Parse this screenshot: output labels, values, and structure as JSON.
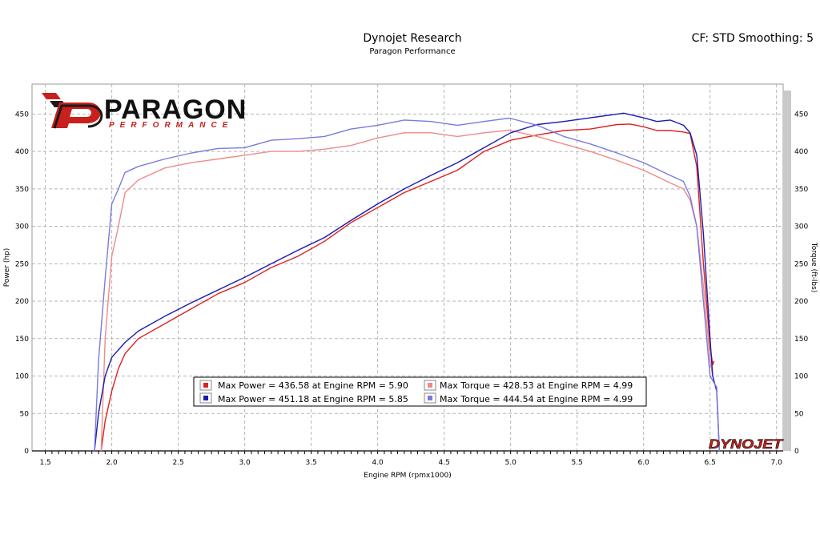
{
  "header": {
    "title": "Dynojet Research",
    "subtitle": "Paragon Performance",
    "settings": "CF: STD Smoothing: 5"
  },
  "logo": {
    "name": "PARAGON",
    "tagline": "PERFORMANCE",
    "brand": "DYNOJET"
  },
  "colors": {
    "run1_power": "#e02020",
    "run1_torque": "#f08a8a",
    "run2_power": "#1a1ab0",
    "run2_torque": "#7a7ae0"
  },
  "chart_data": {
    "type": "line",
    "xlabel": "Engine RPM (rpmx1000)",
    "ylabel_left": "Power (hp)",
    "ylabel_right": "Torque (ft-lbs)",
    "xlim": [
      1.4,
      7.05
    ],
    "ylim": [
      0,
      490
    ],
    "x_ticks": [
      1.5,
      2.0,
      2.5,
      3.0,
      3.5,
      4.0,
      4.5,
      5.0,
      5.5,
      6.0,
      6.5,
      7.0
    ],
    "x_tick_labels": [
      "1.5",
      "2.0",
      "2.5",
      "3.0",
      "3.5",
      "4.0",
      "4.5",
      "5.0",
      "5.5",
      "6.0",
      "6.5",
      "7.0"
    ],
    "y_ticks": [
      0,
      50,
      100,
      150,
      200,
      250,
      300,
      350,
      400,
      450
    ],
    "y_tick_labels": [
      "0",
      "50",
      "100",
      "150",
      "200",
      "250",
      "300",
      "350",
      "400",
      "450"
    ],
    "grid": true,
    "legend": [
      {
        "text": "Max Power = 436.58 at Engine RPM = 5.90",
        "series": "run1_power"
      },
      {
        "text": "Max Torque = 428.53 at Engine RPM = 4.99",
        "series": "run1_torque"
      },
      {
        "text": "Max Power = 451.18 at Engine RPM = 5.85",
        "series": "run2_power"
      },
      {
        "text": "Max Torque = 444.54 at Engine RPM = 4.99",
        "series": "run2_torque"
      }
    ],
    "series": [
      {
        "id": "run1_power",
        "x": [
          1.92,
          1.95,
          2.0,
          2.05,
          2.1,
          2.2,
          2.4,
          2.6,
          2.8,
          3.0,
          3.2,
          3.4,
          3.6,
          3.8,
          4.0,
          4.2,
          4.4,
          4.6,
          4.8,
          5.0,
          5.2,
          5.4,
          5.6,
          5.8,
          5.9,
          6.0,
          6.1,
          6.2,
          6.3,
          6.35,
          6.4,
          6.45,
          6.5,
          6.52,
          6.53
        ],
        "y": [
          0,
          40,
          80,
          110,
          130,
          150,
          170,
          190,
          210,
          225,
          245,
          260,
          280,
          305,
          325,
          345,
          360,
          375,
          400,
          415,
          422,
          428,
          430,
          436,
          436.58,
          433,
          428,
          428,
          426,
          424,
          380,
          250,
          140,
          115,
          120
        ]
      },
      {
        "id": "run1_torque",
        "x": [
          1.92,
          1.95,
          2.0,
          2.05,
          2.1,
          2.2,
          2.4,
          2.6,
          2.8,
          3.0,
          3.2,
          3.4,
          3.6,
          3.8,
          4.0,
          4.2,
          4.4,
          4.6,
          4.8,
          4.99,
          5.2,
          5.4,
          5.6,
          5.8,
          6.0,
          6.2,
          6.3,
          6.35,
          6.4,
          6.45,
          6.5,
          6.52
        ],
        "y": [
          0,
          150,
          260,
          300,
          345,
          362,
          378,
          385,
          390,
          395,
          400,
          400,
          403,
          408,
          418,
          425,
          425,
          420,
          425,
          428.53,
          420,
          410,
          400,
          388,
          375,
          358,
          350,
          335,
          300,
          220,
          120,
          100
        ]
      },
      {
        "id": "run2_power",
        "x": [
          1.87,
          1.9,
          1.95,
          2.0,
          2.1,
          2.2,
          2.4,
          2.6,
          2.8,
          3.0,
          3.2,
          3.4,
          3.6,
          3.8,
          4.0,
          4.2,
          4.4,
          4.6,
          4.8,
          5.0,
          5.2,
          5.4,
          5.6,
          5.85,
          6.0,
          6.1,
          6.2,
          6.3,
          6.35,
          6.4,
          6.45,
          6.5,
          6.52,
          6.55,
          6.57
        ],
        "y": [
          0,
          50,
          100,
          125,
          145,
          160,
          180,
          198,
          215,
          232,
          250,
          268,
          285,
          308,
          330,
          350,
          368,
          385,
          405,
          425,
          436,
          440,
          445,
          451.18,
          445,
          440,
          442,
          435,
          425,
          395,
          290,
          150,
          100,
          80,
          0
        ]
      },
      {
        "id": "run2_torque",
        "x": [
          1.87,
          1.9,
          1.95,
          2.0,
          2.05,
          2.1,
          2.2,
          2.4,
          2.6,
          2.8,
          3.0,
          3.2,
          3.4,
          3.6,
          3.8,
          4.0,
          4.2,
          4.4,
          4.6,
          4.8,
          4.99,
          5.2,
          5.4,
          5.6,
          5.8,
          6.0,
          6.2,
          6.3,
          6.35,
          6.4,
          6.45,
          6.5,
          6.55,
          6.57
        ],
        "y": [
          0,
          120,
          230,
          330,
          350,
          372,
          380,
          390,
          398,
          404,
          405,
          415,
          417,
          420,
          430,
          435,
          442,
          440,
          435,
          440,
          444.54,
          435,
          420,
          410,
          398,
          385,
          368,
          360,
          340,
          300,
          200,
          100,
          85,
          0
        ]
      }
    ]
  }
}
